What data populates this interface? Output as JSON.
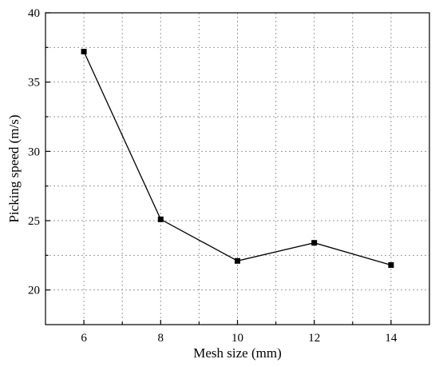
{
  "chart_data": {
    "type": "line",
    "title": "",
    "xlabel": "Mesh size (mm)",
    "ylabel": "Picking speed (m/s)",
    "xlim": [
      5,
      15
    ],
    "ylim": [
      17.5,
      40
    ],
    "x_ticks": [
      6,
      8,
      10,
      12,
      14
    ],
    "x_minor_ticks": [
      7,
      9,
      11,
      13
    ],
    "y_ticks": [
      20,
      25,
      30,
      35,
      40
    ],
    "y_minor_ticks": [
      22.5,
      27.5,
      32.5,
      37.5
    ],
    "grid": true,
    "series": [
      {
        "x": [
          6,
          8,
          10,
          12,
          14
        ],
        "values": [
          37.2,
          25.1,
          22.1,
          23.4,
          21.8
        ],
        "color": "#000000",
        "marker": "square"
      }
    ]
  }
}
